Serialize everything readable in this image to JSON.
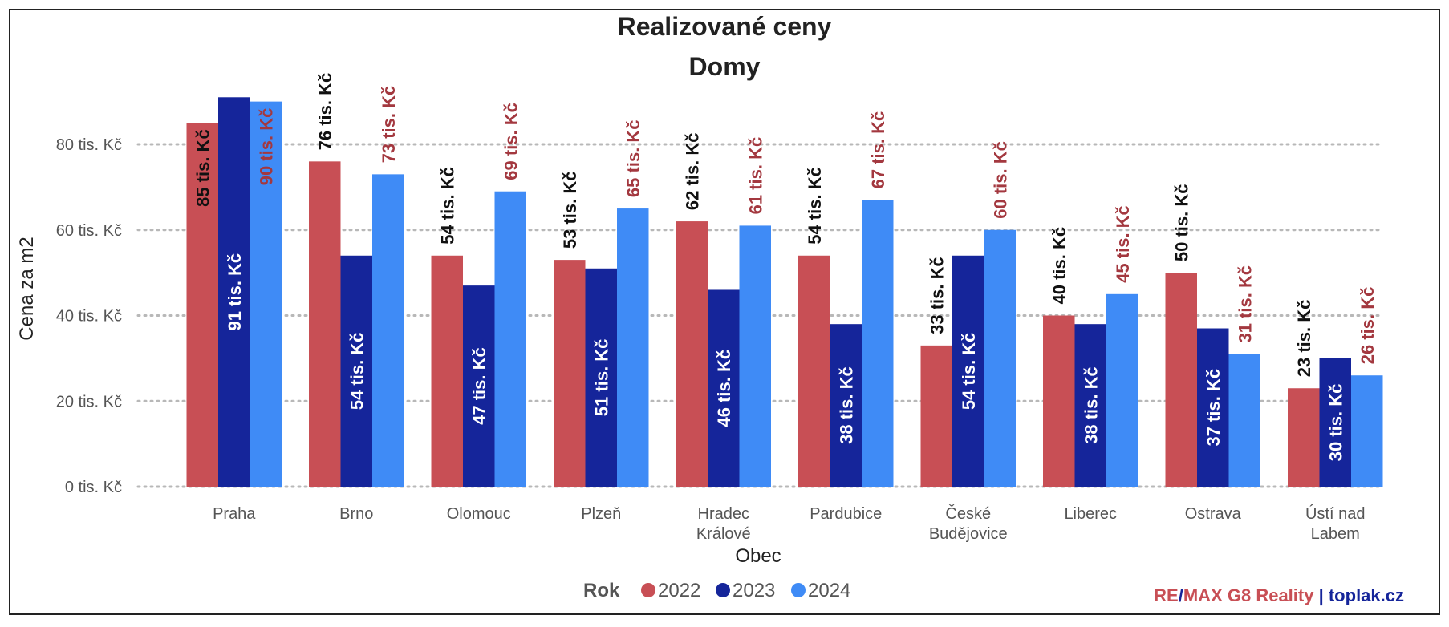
{
  "chart_data": {
    "type": "bar",
    "title": "Realizované ceny",
    "subtitle": "Domy",
    "xlabel": "Obec",
    "ylabel": "Cena za m2",
    "unit_suffix": " tis. Kč",
    "ylim": [
      0,
      92
    ],
    "yticks": [
      0,
      20,
      40,
      60,
      80
    ],
    "ytick_labels": [
      "0 tis. Kč",
      "20 tis. Kč",
      "40 tis. Kč",
      "60 tis. Kč",
      "80 tis. Kč"
    ],
    "grid": "horizontal dotted",
    "categories": [
      [
        "Praha"
      ],
      [
        "Brno"
      ],
      [
        "Olomouc"
      ],
      [
        "Plzeň"
      ],
      [
        "Hradec",
        "Králové"
      ],
      [
        "Pardubice"
      ],
      [
        "České",
        "Budějovice"
      ],
      [
        "Liberec"
      ],
      [
        "Ostrava"
      ],
      [
        "Ústí nad",
        "Labem"
      ]
    ],
    "series": [
      {
        "name": "2022",
        "color": "#c84f55",
        "values": [
          85,
          76,
          54,
          53,
          62,
          54,
          33,
          40,
          50,
          23
        ]
      },
      {
        "name": "2023",
        "color": "#15259a",
        "values": [
          91,
          54,
          47,
          51,
          46,
          38,
          54,
          38,
          37,
          30
        ]
      },
      {
        "name": "2024",
        "color": "#3f8bf6",
        "values": [
          90,
          73,
          69,
          65,
          61,
          67,
          60,
          45,
          31,
          26
        ]
      }
    ],
    "label_colors": {
      "2022": "#111111",
      "2023": "#ffffff",
      "2024": "#a3383f"
    },
    "legend": {
      "title": "Rok",
      "position": "bottom-center"
    }
  },
  "credit": {
    "part1": "RE",
    "sep1": "/",
    "part2": "MAX G8 Reality",
    "sep2": " | ",
    "part3": "toplak.cz",
    "colors": {
      "red": "#c84f55",
      "blue": "#15259a"
    }
  }
}
